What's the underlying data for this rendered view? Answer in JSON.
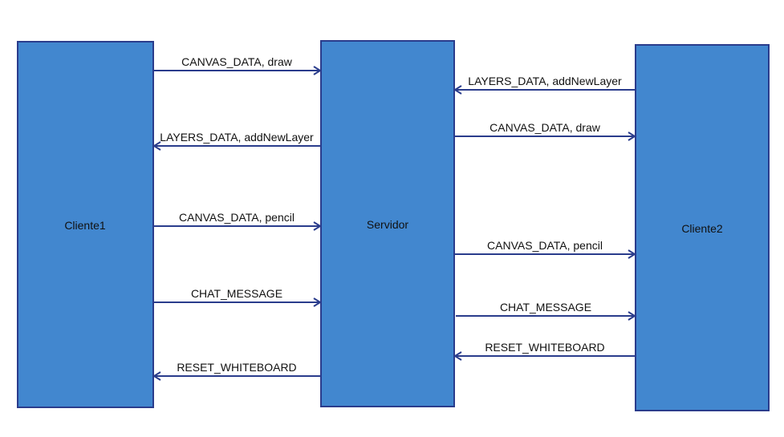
{
  "colors": {
    "box_fill": "#4287cf",
    "box_border": "#2a3c8c",
    "arrow": "#2a3c8c",
    "text": "#111111"
  },
  "participants": {
    "cliente1": "Cliente1",
    "servidor": "Servidor",
    "cliente2": "Cliente2"
  },
  "messages": [
    {
      "label": "CANVAS_DATA, draw",
      "from": "Cliente1",
      "to": "Servidor"
    },
    {
      "label": "LAYERS_DATA, addNewLayer",
      "from": "Cliente2",
      "to": "Servidor"
    },
    {
      "label": "CANVAS_DATA, draw",
      "from": "Servidor",
      "to": "Cliente2"
    },
    {
      "label": "LAYERS_DATA, addNewLayer",
      "from": "Servidor",
      "to": "Cliente1"
    },
    {
      "label": "CANVAS_DATA, pencil",
      "from": "Cliente1",
      "to": "Servidor"
    },
    {
      "label": "CANVAS_DATA, pencil",
      "from": "Servidor",
      "to": "Cliente2"
    },
    {
      "label": "CHAT_MESSAGE",
      "from": "Cliente1",
      "to": "Servidor"
    },
    {
      "label": "CHAT_MESSAGE",
      "from": "Servidor",
      "to": "Cliente2"
    },
    {
      "label": "RESET_WHITEBOARD",
      "from": "Cliente2",
      "to": "Servidor"
    },
    {
      "label": "RESET_WHITEBOARD",
      "from": "Servidor",
      "to": "Cliente1"
    }
  ]
}
